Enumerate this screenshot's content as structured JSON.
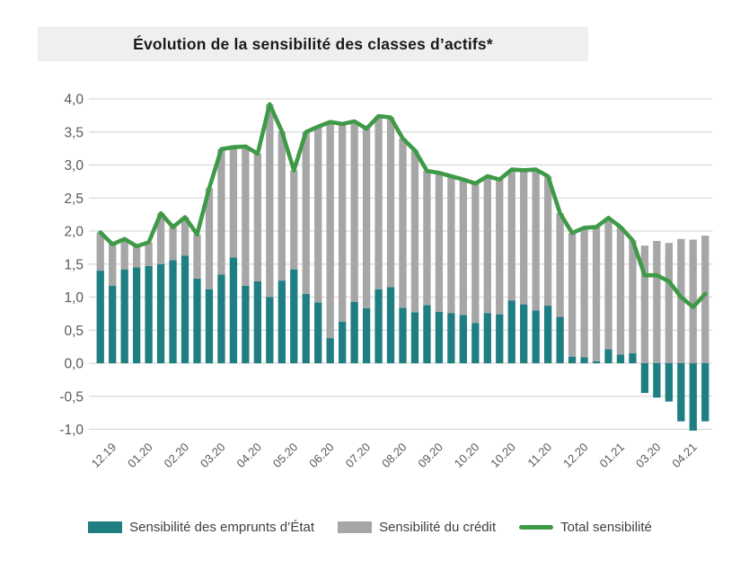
{
  "chart_data": {
    "type": "bar",
    "subtype": "stacked-bars-with-total-line",
    "title": "Évolution de la sensibilité des classes d’actifs*",
    "x_tick_labels": [
      "12.19",
      "01.20",
      "02.20",
      "03.20",
      "04.20",
      "05.20",
      "06.20",
      "07.20",
      "08.20",
      "09.20",
      "10.20",
      "10.20",
      "11.20",
      "12.20",
      "01.21",
      "03.20",
      "04.21"
    ],
    "y_tick_values": [
      4.0,
      3.5,
      3.0,
      2.5,
      2.0,
      1.5,
      1.0,
      0.5,
      0.0,
      -0.5,
      -1.0
    ],
    "y_tick_labels": [
      "4,0",
      "3,5",
      "3,0",
      "2,5",
      "2,0",
      "1,5",
      "1,0",
      "0,5",
      "0,0",
      "-0,5",
      "-1,0"
    ],
    "ylim": [
      -1.0,
      4.0
    ],
    "grid": "horizontal",
    "legend_position": "bottom",
    "colors": {
      "state_bonds_bar": "#1e7e82",
      "credit_bar": "#a6a6a6",
      "total_line": "#3e9a46",
      "gridline": "#d9d9d9",
      "axis_text": "#595959",
      "title_band": "#efefef"
    },
    "series": [
      {
        "name": "Sensibilité des emprunts d’État",
        "type": "bar",
        "stack": "sensi",
        "color": "#1e7e82",
        "values": [
          1.4,
          1.17,
          1.42,
          1.45,
          1.47,
          1.5,
          1.56,
          1.63,
          1.28,
          1.12,
          1.34,
          1.6,
          1.17,
          1.24,
          1.0,
          1.25,
          1.42,
          1.05,
          0.92,
          0.38,
          0.63,
          0.93,
          0.83,
          1.12,
          1.15,
          0.84,
          0.77,
          0.88,
          0.78,
          0.76,
          0.73,
          0.61,
          0.76,
          0.74,
          0.95,
          0.89,
          0.8,
          0.87,
          0.7,
          0.1,
          0.09,
          0.03,
          0.21,
          0.13,
          0.15,
          -0.45,
          -0.52,
          -0.58,
          -0.88,
          -1.02,
          -0.88
        ]
      },
      {
        "name": "Sensibilité du crédit",
        "type": "bar",
        "stack": "sensi",
        "color": "#a6a6a6",
        "values": [
          0.58,
          0.63,
          0.46,
          0.32,
          0.36,
          0.77,
          0.5,
          0.58,
          0.67,
          1.53,
          1.9,
          1.67,
          2.11,
          1.93,
          2.92,
          2.26,
          1.5,
          2.45,
          2.66,
          3.27,
          2.99,
          2.73,
          2.72,
          2.62,
          2.57,
          2.56,
          2.45,
          2.03,
          2.1,
          2.07,
          2.05,
          2.11,
          2.07,
          2.04,
          1.98,
          2.03,
          2.13,
          1.96,
          1.57,
          1.87,
          1.96,
          2.03,
          1.99,
          1.93,
          1.71,
          1.78,
          1.85,
          1.82,
          1.88,
          1.87,
          1.93
        ]
      },
      {
        "name": "Total sensibilité",
        "type": "line",
        "color": "#3e9a46",
        "values": [
          1.98,
          1.8,
          1.88,
          1.77,
          1.83,
          2.27,
          2.06,
          2.21,
          1.95,
          2.65,
          3.24,
          3.27,
          3.28,
          3.17,
          3.92,
          3.51,
          2.92,
          3.5,
          3.58,
          3.65,
          3.62,
          3.66,
          3.55,
          3.74,
          3.72,
          3.4,
          3.22,
          2.91,
          2.88,
          2.83,
          2.78,
          2.72,
          2.83,
          2.78,
          2.93,
          2.92,
          2.93,
          2.83,
          2.27,
          1.97,
          2.05,
          2.06,
          2.2,
          2.06,
          1.86,
          1.33,
          1.33,
          1.24,
          1.0,
          0.85,
          1.05
        ]
      }
    ]
  }
}
